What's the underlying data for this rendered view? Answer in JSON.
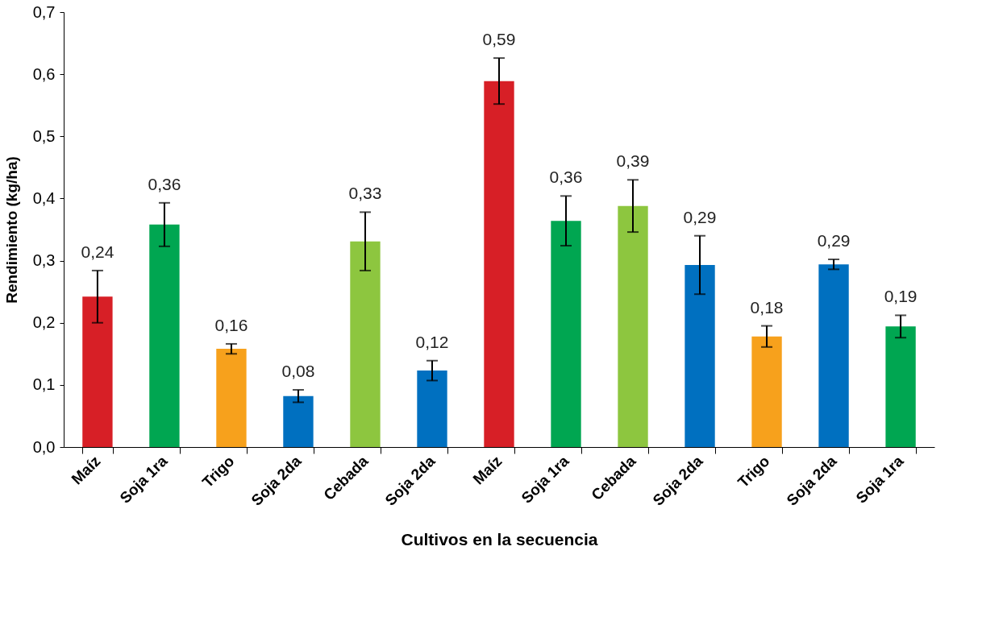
{
  "chart_data": {
    "type": "bar",
    "xlabel": "Cultivos en la secuencia",
    "ylabel": "Rendimiento (kg/ha)",
    "categories": [
      "Maíz",
      "Soja 1ra",
      "Trigo",
      "Soja 2da",
      "Cebada",
      "Soja 2da",
      "Maíz",
      "Soja 1ra",
      "Cebada",
      "Soja 2da",
      "Trigo",
      "Soja 2da",
      "Soja 1ra"
    ],
    "values": [
      0.242,
      0.358,
      0.158,
      0.082,
      0.331,
      0.123,
      0.589,
      0.364,
      0.388,
      0.293,
      0.178,
      0.294,
      0.194
    ],
    "errors": [
      0.042,
      0.035,
      0.008,
      0.01,
      0.047,
      0.016,
      0.037,
      0.04,
      0.042,
      0.047,
      0.017,
      0.008,
      0.018
    ],
    "value_labels": [
      "0,24",
      "0,36",
      "0,16",
      "0,08",
      "0,33",
      "0,12",
      "0,59",
      "0,36",
      "0,39",
      "0,29",
      "0,18",
      "0,29",
      "0,19"
    ],
    "colors": [
      "#d71f26",
      "#00a651",
      "#f7a11c",
      "#0070c0",
      "#8dc63f",
      "#0070c0",
      "#d71f26",
      "#00a651",
      "#8dc63f",
      "#0070c0",
      "#f7a11c",
      "#0070c0",
      "#00a651"
    ],
    "ylim": [
      0,
      0.7
    ],
    "yticks": [
      {
        "value": 0,
        "label": "0,0"
      },
      {
        "value": 0.1,
        "label": "0,1"
      },
      {
        "value": 0.2,
        "label": "0,2"
      },
      {
        "value": 0.3,
        "label": "0,3"
      },
      {
        "value": 0.4,
        "label": "0,4"
      },
      {
        "value": 0.5,
        "label": "0,5"
      },
      {
        "value": 0.6,
        "label": "0,6"
      },
      {
        "value": 0.7,
        "label": "0,7"
      }
    ],
    "grid": false
  }
}
